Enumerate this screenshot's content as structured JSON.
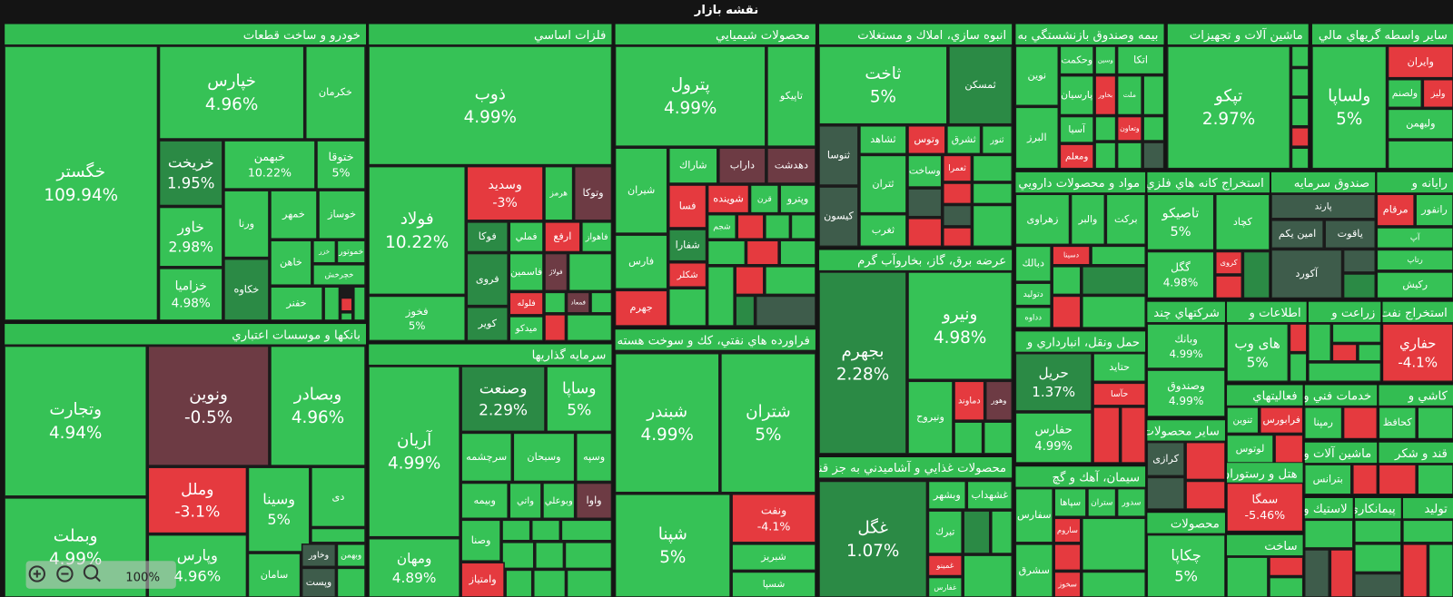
{
  "title": "نقشه بازار",
  "zoom": "100%",
  "sectors": [
    {
      "name": "خودرو و ساخت قطعات",
      "tiles": [
        {
          "label": "خگستر",
          "change": "109.94%"
        },
        {
          "label": "خپارس",
          "change": "4.96%"
        },
        {
          "label": "خكرمان"
        },
        {
          "label": "خريخت",
          "change": "1.95%"
        },
        {
          "label": "خبهمن",
          "change": "10.22%"
        },
        {
          "label": "ختوقا",
          "change": "5%"
        },
        {
          "label": "خاور",
          "change": "2.98%"
        },
        {
          "label": "خزاميا",
          "change": "4.98%"
        },
        {
          "label": "ورنا"
        },
        {
          "label": "خمهر"
        },
        {
          "label": "خوساز"
        },
        {
          "label": "خكاوه"
        },
        {
          "label": "خاهن"
        },
        {
          "label": "خزر"
        },
        {
          "label": "خموتور"
        },
        {
          "label": "خچرخش"
        },
        {
          "label": "خفنر"
        }
      ]
    },
    {
      "name": "بانكها و موسسات اعتباري",
      "tiles": [
        {
          "label": "وتجارت",
          "change": "4.94%"
        },
        {
          "label": "ونوين",
          "change": "-0.5%"
        },
        {
          "label": "وبصادر",
          "change": "4.96%"
        },
        {
          "label": "وملل",
          "change": "-3.1%"
        },
        {
          "label": "وسينا",
          "change": "5%"
        },
        {
          "label": "دی"
        },
        {
          "label": "وبملت",
          "change": "4.99%"
        },
        {
          "label": "وپارس",
          "change": "4.96%"
        },
        {
          "label": "سامان"
        },
        {
          "label": "وخاور"
        },
        {
          "label": "وبهمن"
        },
        {
          "label": "وپست"
        }
      ]
    },
    {
      "name": "فلزات اساسي",
      "tiles": [
        {
          "label": "ذوب",
          "change": "4.99%"
        },
        {
          "label": "فولاد",
          "change": "10.22%"
        },
        {
          "label": "فخوز",
          "change": "5%"
        },
        {
          "label": "وسديد",
          "change": "-3%"
        },
        {
          "label": "هرمز"
        },
        {
          "label": "وتوكا"
        },
        {
          "label": "فوكا"
        },
        {
          "label": "فملي"
        },
        {
          "label": "ارفع"
        },
        {
          "label": "فاهواز"
        },
        {
          "label": "فروی"
        },
        {
          "label": "فاسمين"
        },
        {
          "label": "فولاژ"
        },
        {
          "label": "فلوله"
        },
        {
          "label": "فمعاد"
        },
        {
          "label": "كوير"
        },
        {
          "label": "ميدكو"
        }
      ]
    },
    {
      "name": "سرمايه گذاريها",
      "tiles": [
        {
          "label": "آريان",
          "change": "4.99%"
        },
        {
          "label": "وصنعت",
          "change": "2.29%"
        },
        {
          "label": "وساپا",
          "change": "5%"
        },
        {
          "label": "سرچشمه"
        },
        {
          "label": "وسبحان"
        },
        {
          "label": "وسپه"
        },
        {
          "label": "وبيمه"
        },
        {
          "label": "واتي"
        },
        {
          "label": "وبوعلي"
        },
        {
          "label": "واوا"
        },
        {
          "label": "ومهان",
          "change": "4.89%"
        },
        {
          "label": "وصنا"
        },
        {
          "label": "وامتياز"
        }
      ]
    },
    {
      "name": "محصولات شيميايي",
      "tiles": [
        {
          "label": "پترول",
          "change": "4.99%"
        },
        {
          "label": "تاپيكو"
        },
        {
          "label": "شيران"
        },
        {
          "label": "شاراك"
        },
        {
          "label": "داراب"
        },
        {
          "label": "دهدشت"
        },
        {
          "label": "فسا"
        },
        {
          "label": "شوينده"
        },
        {
          "label": "قرن"
        },
        {
          "label": "وپترو"
        },
        {
          "label": "فارس"
        },
        {
          "label": "شفارا"
        },
        {
          "label": "شجم"
        },
        {
          "label": "جهرم"
        },
        {
          "label": "شكلر"
        }
      ]
    },
    {
      "name": "فراورده هاي نفتي، كك و سوخت هسته",
      "tiles": [
        {
          "label": "شبندر",
          "change": "4.99%"
        },
        {
          "label": "شتران",
          "change": "5%"
        },
        {
          "label": "شپنا",
          "change": "5%"
        },
        {
          "label": "ونفت",
          "change": "-4.1%"
        },
        {
          "label": "شبريز"
        },
        {
          "label": "شسپا"
        }
      ]
    },
    {
      "name": "انبوه سازي، املاك و مستغلات",
      "tiles": [
        {
          "label": "ثاخت",
          "change": "5%"
        },
        {
          "label": "ثمسكن"
        },
        {
          "label": "ثنوسا"
        },
        {
          "label": "ثشاهد"
        },
        {
          "label": "وتوس"
        },
        {
          "label": "ثشرق"
        },
        {
          "label": "ثنور"
        },
        {
          "label": "كيسون"
        },
        {
          "label": "ثتران"
        },
        {
          "label": "ثغرب"
        },
        {
          "label": "وساخت"
        },
        {
          "label": "ثعمرا"
        }
      ]
    },
    {
      "name": "عرضه برق، گاز، بخاروآب گرم",
      "tiles": [
        {
          "label": "بجهرم",
          "change": "2.28%"
        },
        {
          "label": "ونيرو",
          "change": "4.98%"
        },
        {
          "label": "ونيروح"
        },
        {
          "label": "دماوند"
        },
        {
          "label": "وهور"
        }
      ]
    },
    {
      "name": "محصولات غذايي و آشاميدني به جز قند",
      "tiles": [
        {
          "label": "غگل",
          "change": "1.07%"
        },
        {
          "label": "وبشهر"
        },
        {
          "label": "غشهداب"
        },
        {
          "label": "تبرك"
        },
        {
          "label": "غمينو"
        },
        {
          "label": "غفارس"
        }
      ]
    },
    {
      "name": "بيمه وصندوق بازنشستگي به",
      "tiles": [
        {
          "label": "نوين"
        },
        {
          "label": "وحكمت"
        },
        {
          "label": "وسين"
        },
        {
          "label": "اتكا"
        },
        {
          "label": "پارسيان"
        },
        {
          "label": "بخاور"
        },
        {
          "label": "ملت"
        },
        {
          "label": "البرز"
        },
        {
          "label": "آسيا"
        },
        {
          "label": "وتعاون"
        },
        {
          "label": "ومعلم"
        }
      ]
    },
    {
      "name": "ماشين آلات و تجهيزات",
      "tiles": [
        {
          "label": "تپكو",
          "change": "2.97%"
        }
      ]
    },
    {
      "name": "ساير واسطه گريهاي مالي",
      "tiles": [
        {
          "label": "ولساپا",
          "change": "5%"
        },
        {
          "label": "وايران"
        },
        {
          "label": "ولصنم"
        },
        {
          "label": "وليز"
        },
        {
          "label": "ولبهمن"
        }
      ]
    },
    {
      "name": "مواد و محصولات دارويي",
      "tiles": [
        {
          "label": "زهراوی"
        },
        {
          "label": "والبر"
        },
        {
          "label": "بركت"
        },
        {
          "label": "دبالك"
        },
        {
          "label": "دسينا"
        },
        {
          "label": "دتوليد"
        },
        {
          "label": "دداوه"
        }
      ]
    },
    {
      "name": "استخراج كانه هاي فلزي",
      "tiles": [
        {
          "label": "تاصيكو",
          "change": "5%"
        },
        {
          "label": "كچاد"
        },
        {
          "label": "گگل",
          "change": "4.98%"
        },
        {
          "label": "كروی"
        }
      ]
    },
    {
      "name": "صندوق سرمايه",
      "tiles": [
        {
          "label": "پارند"
        },
        {
          "label": "امين يكم"
        },
        {
          "label": "ياقوت"
        },
        {
          "label": "آكورد"
        }
      ]
    },
    {
      "name": "رايانه و",
      "tiles": [
        {
          "label": "مرقام"
        },
        {
          "label": "رانفور"
        },
        {
          "label": "آپ"
        },
        {
          "label": "رتاپ"
        },
        {
          "label": "ركيش"
        }
      ]
    },
    {
      "name": "حمل ونقل، انبارداري و",
      "tiles": [
        {
          "label": "حريل",
          "change": "1.37%"
        },
        {
          "label": "حتايد"
        },
        {
          "label": "حآسا"
        },
        {
          "label": "حفارس",
          "change": "4.99%"
        }
      ]
    },
    {
      "name": "شركتهاي چند",
      "tiles": [
        {
          "label": "وبانك",
          "change": "4.99%"
        },
        {
          "label": "وصندوق",
          "change": "4.99%"
        }
      ]
    },
    {
      "name": "اطلاعات و",
      "tiles": [
        {
          "label": "های وب",
          "change": "5%"
        }
      ]
    },
    {
      "name": "زراعت و",
      "tiles": []
    },
    {
      "name": "استخراج نفت",
      "tiles": [
        {
          "label": "حفاري",
          "change": "-4.1%"
        }
      ]
    },
    {
      "name": "فعاليتهاي",
      "tiles": [
        {
          "label": "فرابورس"
        },
        {
          "label": "تنوين"
        },
        {
          "label": "لوتوس"
        }
      ]
    },
    {
      "name": "خدمات فني و",
      "tiles": [
        {
          "label": "رمپنا"
        }
      ]
    },
    {
      "name": "كاشي و",
      "tiles": [
        {
          "label": "كحافظ"
        }
      ]
    },
    {
      "name": "ساير محصولات",
      "tiles": [
        {
          "label": "كرازی"
        }
      ]
    },
    {
      "name": "سيمان، آهك و گچ",
      "tiles": [
        {
          "label": "سفارس"
        },
        {
          "label": "سپاها"
        },
        {
          "label": "ستران"
        },
        {
          "label": "سدور"
        },
        {
          "label": "ساروم"
        },
        {
          "label": "سشرق"
        },
        {
          "label": "سخوز"
        }
      ]
    },
    {
      "name": "محصولات",
      "tiles": [
        {
          "label": "چكاپا",
          "change": "5%"
        }
      ]
    },
    {
      "name": "هتل و رستوران",
      "tiles": [
        {
          "label": "سمگا",
          "change": "-5.46%"
        }
      ]
    },
    {
      "name": "ماشين آلات و",
      "tiles": [
        {
          "label": "بترانس"
        }
      ]
    },
    {
      "name": "قند و شكر",
      "tiles": []
    },
    {
      "name": "ساخت",
      "tiles": []
    },
    {
      "name": "لاستيك و",
      "tiles": []
    },
    {
      "name": "پيمانكاري",
      "tiles": []
    },
    {
      "name": "توليد",
      "tiles": []
    }
  ]
}
